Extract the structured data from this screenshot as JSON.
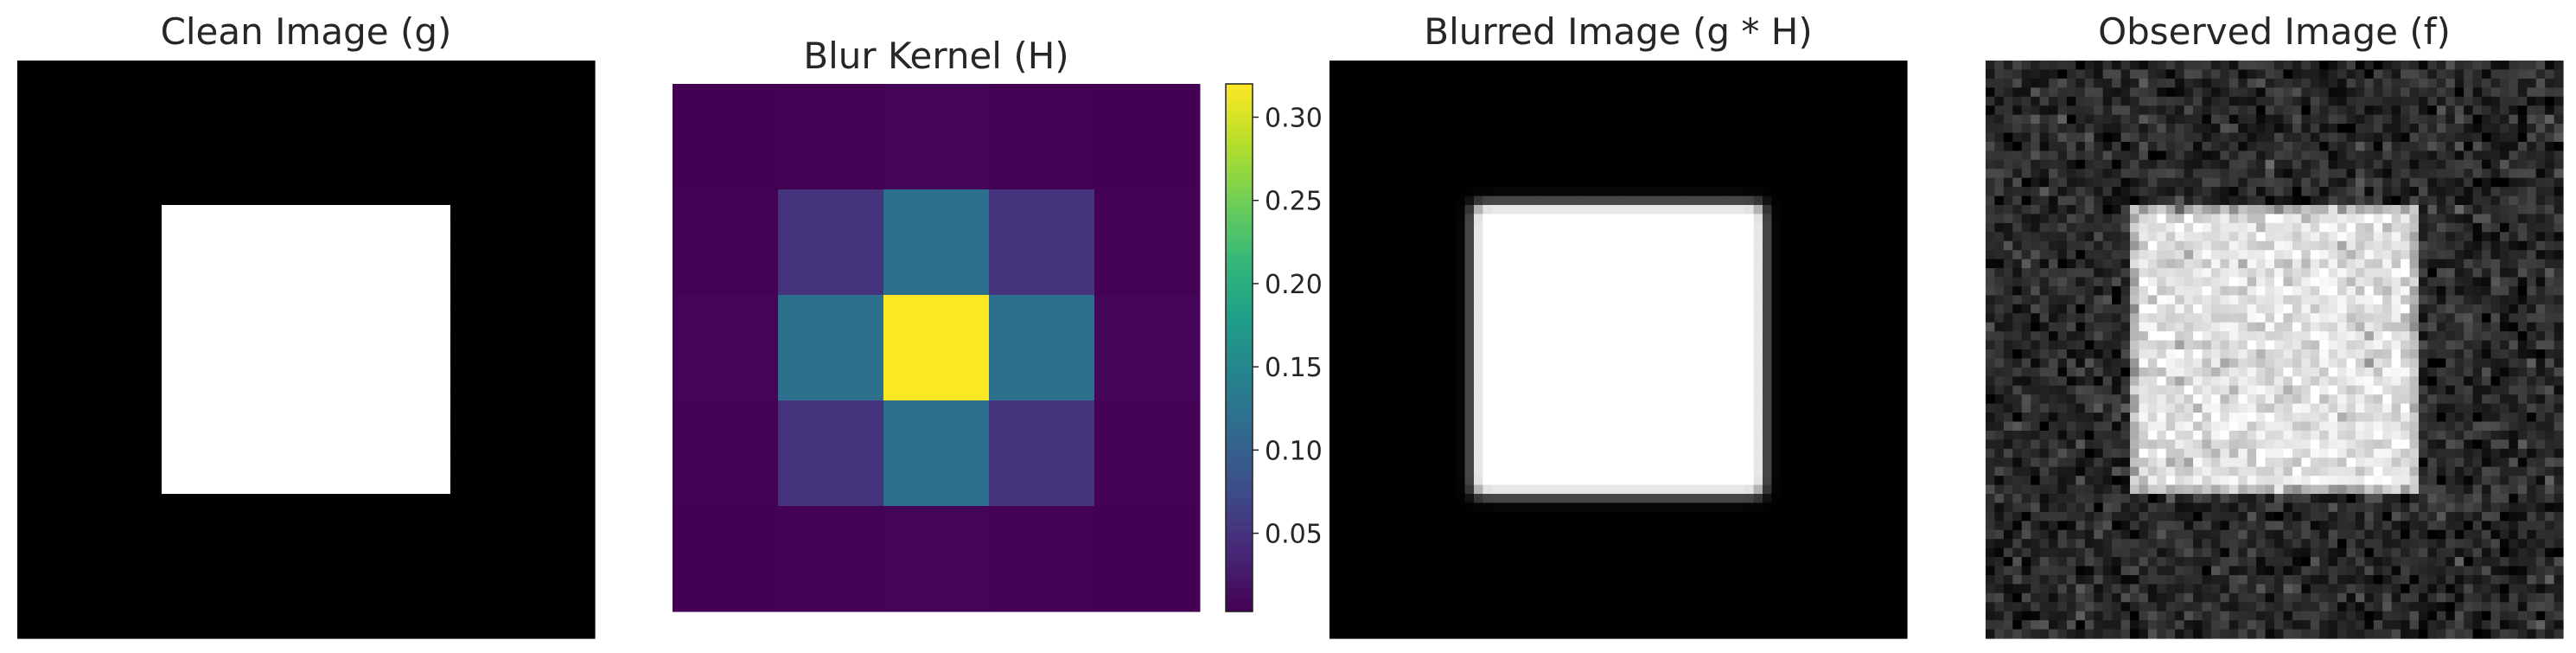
{
  "figure": {
    "panels": [
      {
        "title": "Clean Image (g)"
      },
      {
        "title": "Blur Kernel (H)"
      },
      {
        "title": "Blurred Image (g * H)"
      },
      {
        "title": "Observed Image (f)"
      }
    ]
  },
  "chart_data": [
    {
      "type": "heatmap",
      "title": "Clean Image (g)",
      "colormap": "gray",
      "grid": false,
      "axes": false,
      "grid_size": 64,
      "square": {
        "start": 16,
        "end": 48,
        "value": 1.0
      },
      "background_value": 0.0
    },
    {
      "type": "heatmap",
      "title": "Blur Kernel (H)",
      "colormap": "viridis",
      "grid": false,
      "axes": false,
      "values": [
        [
          0.003,
          0.004,
          0.007,
          0.004,
          0.003
        ],
        [
          0.004,
          0.05,
          0.12,
          0.05,
          0.004
        ],
        [
          0.007,
          0.12,
          0.32,
          0.12,
          0.007
        ],
        [
          0.004,
          0.05,
          0.12,
          0.05,
          0.004
        ],
        [
          0.003,
          0.004,
          0.007,
          0.004,
          0.003
        ]
      ],
      "colorbar": {
        "range": [
          0.003,
          0.32
        ],
        "ticks": [
          0.05,
          0.1,
          0.15,
          0.2,
          0.25,
          0.3
        ],
        "tick_labels": [
          "0.05",
          "0.10",
          "0.15",
          "0.20",
          "0.25",
          "0.30"
        ]
      }
    },
    {
      "type": "heatmap",
      "title": "Blurred Image (g * H)",
      "colormap": "gray",
      "grid": false,
      "axes": false,
      "grid_size": 64,
      "description_values": {
        "square_start": 16,
        "square_end": 48,
        "edge_blur": 1
      }
    },
    {
      "type": "heatmap",
      "title": "Observed Image (f)",
      "colormap": "gray",
      "grid": false,
      "axes": false,
      "grid_size": 64,
      "noise_std": 0.08,
      "square": {
        "start": 16,
        "end": 48,
        "value": 0.88
      },
      "background_value": 0.16
    }
  ]
}
